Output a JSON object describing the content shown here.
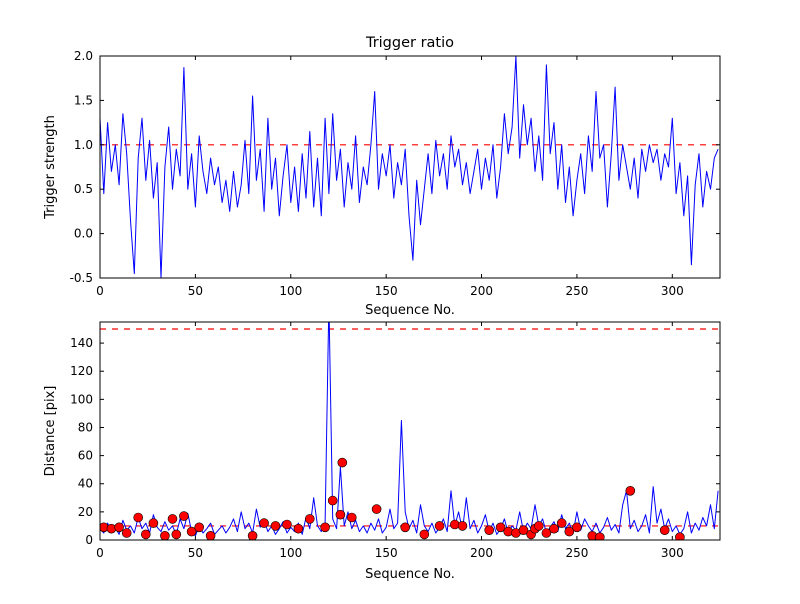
{
  "figure": {
    "background": "#ffffff"
  },
  "chart_data": [
    {
      "type": "line",
      "title": "Trigger ratio",
      "xlabel": "Sequence No.",
      "ylabel": "Trigger strength",
      "xlim": [
        0,
        325
      ],
      "ylim": [
        -0.5,
        2.0
      ],
      "xticks": [
        0,
        50,
        100,
        150,
        200,
        250,
        300
      ],
      "xtick_labels": [
        "0",
        "50",
        "100",
        "150",
        "200",
        "250",
        "300"
      ],
      "yticks": [
        2.0,
        1.5,
        1.0,
        0.5,
        0.0,
        -0.5
      ],
      "ytick_labels": [
        "2.0",
        "1.5",
        "1.0",
        "0.5",
        "0.0",
        "-0.5"
      ],
      "threshold_lines": [
        1.0
      ],
      "line_color": "#0000ff",
      "threshold_color": "#ff0000",
      "grid": false,
      "legend": null,
      "x_start": 0,
      "x_step": 2,
      "values": [
        1.3,
        0.45,
        1.25,
        0.7,
        1.0,
        0.55,
        1.35,
        0.9,
        0.15,
        -0.45,
        0.85,
        1.3,
        0.6,
        1.05,
        0.4,
        0.8,
        -0.5,
        0.75,
        1.2,
        0.5,
        0.95,
        0.65,
        1.87,
        0.5,
        0.9,
        0.3,
        1.1,
        0.7,
        0.45,
        0.85,
        0.55,
        0.75,
        0.35,
        0.6,
        0.25,
        0.7,
        0.3,
        0.55,
        1.05,
        0.45,
        1.55,
        0.6,
        0.95,
        0.25,
        1.3,
        0.5,
        0.85,
        0.2,
        0.65,
        1.0,
        0.35,
        0.75,
        0.25,
        0.9,
        0.4,
        1.15,
        0.3,
        0.85,
        0.2,
        1.3,
        0.45,
        1.35,
        0.6,
        0.95,
        0.3,
        0.8,
        0.5,
        1.1,
        0.35,
        0.75,
        0.55,
        1.0,
        1.6,
        0.5,
        0.9,
        0.65,
        1.0,
        0.4,
        0.8,
        0.55,
        0.95,
        0.2,
        -0.3,
        0.6,
        0.1,
        0.5,
        0.9,
        0.45,
        1.05,
        0.65,
        0.9,
        0.5,
        1.1,
        0.75,
        0.95,
        0.55,
        0.8,
        0.45,
        0.7,
        0.95,
        0.5,
        0.85,
        0.6,
        1.0,
        0.4,
        0.75,
        1.35,
        0.9,
        1.2,
        2.0,
        0.85,
        1.45,
        1.0,
        1.3,
        0.7,
        1.1,
        0.6,
        1.9,
        0.9,
        1.25,
        0.5,
        1.0,
        0.35,
        0.75,
        0.2,
        0.6,
        0.9,
        0.45,
        1.1,
        0.7,
        1.6,
        0.85,
        1.0,
        0.3,
        0.9,
        1.65,
        0.6,
        1.0,
        0.75,
        0.5,
        0.85,
        0.4,
        0.95,
        0.7,
        1.0,
        0.8,
        0.95,
        0.6,
        0.9,
        0.75,
        1.3,
        0.45,
        0.8,
        0.2,
        0.65,
        -0.35,
        0.55,
        0.9,
        0.3,
        0.7,
        0.5,
        0.85,
        0.95
      ]
    },
    {
      "type": "line+scatter",
      "title": "",
      "xlabel": "Sequence No.",
      "ylabel": "Distance [pix]",
      "xlim": [
        0,
        325
      ],
      "ylim": [
        0,
        155
      ],
      "xticks": [
        0,
        50,
        100,
        150,
        200,
        250,
        300
      ],
      "xtick_labels": [
        "0",
        "50",
        "100",
        "150",
        "200",
        "250",
        "300"
      ],
      "yticks": [
        0,
        20,
        40,
        60,
        80,
        100,
        120,
        140
      ],
      "ytick_labels": [
        "0",
        "20",
        "40",
        "60",
        "80",
        "100",
        "120",
        "140"
      ],
      "threshold_lines": [
        150,
        10
      ],
      "line_color": "#0000ff",
      "threshold_color": "#ff0000",
      "marker_color": "#ff0000",
      "grid": false,
      "legend": null,
      "x_start": 0,
      "x_step": 2,
      "values": [
        8,
        5,
        12,
        6,
        9,
        4,
        14,
        7,
        10,
        5,
        16,
        8,
        12,
        5,
        18,
        9,
        6,
        13,
        7,
        10,
        4,
        15,
        8,
        19,
        6,
        3,
        10,
        5,
        8,
        12,
        4,
        7,
        10,
        5,
        9,
        15,
        6,
        20,
        8,
        12,
        5,
        22,
        9,
        14,
        6,
        10,
        4,
        8,
        13,
        5,
        9,
        6,
        12,
        4,
        16,
        8,
        30,
        10,
        6,
        12,
        170,
        15,
        8,
        52,
        10,
        20,
        8,
        14,
        6,
        10,
        5,
        12,
        7,
        15,
        5,
        9,
        22,
        8,
        12,
        85,
        20,
        8,
        14,
        5,
        25,
        10,
        6,
        12,
        5,
        9,
        15,
        6,
        35,
        10,
        20,
        7,
        30,
        8,
        14,
        5,
        10,
        18,
        6,
        12,
        4,
        8,
        15,
        5,
        10,
        7,
        20,
        6,
        12,
        8,
        25,
        10,
        15,
        5,
        9,
        13,
        6,
        18,
        8,
        12,
        5,
        20,
        7,
        15,
        10,
        6,
        12,
        5,
        9,
        16,
        7,
        11,
        5,
        25,
        35,
        8,
        14,
        6,
        10,
        18,
        5,
        38,
        12,
        22,
        8,
        15,
        6,
        10,
        4,
        8,
        20,
        5,
        12,
        7,
        16,
        10,
        25,
        8,
        35
      ],
      "scatter_points": [
        [
          2,
          9
        ],
        [
          6,
          8
        ],
        [
          10,
          9
        ],
        [
          14,
          5
        ],
        [
          20,
          16
        ],
        [
          24,
          4
        ],
        [
          28,
          12
        ],
        [
          34,
          3
        ],
        [
          38,
          15
        ],
        [
          40,
          4
        ],
        [
          44,
          17
        ],
        [
          48,
          6
        ],
        [
          52,
          9
        ],
        [
          58,
          3
        ],
        [
          80,
          3
        ],
        [
          86,
          12
        ],
        [
          92,
          10
        ],
        [
          98,
          11
        ],
        [
          104,
          8
        ],
        [
          110,
          15
        ],
        [
          118,
          9
        ],
        [
          122,
          28
        ],
        [
          126,
          18
        ],
        [
          127,
          55
        ],
        [
          132,
          16
        ],
        [
          145,
          22
        ],
        [
          160,
          9
        ],
        [
          170,
          4
        ],
        [
          178,
          10
        ],
        [
          186,
          11
        ],
        [
          190,
          10
        ],
        [
          204,
          7
        ],
        [
          210,
          9
        ],
        [
          214,
          6
        ],
        [
          218,
          5
        ],
        [
          222,
          7
        ],
        [
          226,
          4
        ],
        [
          228,
          8
        ],
        [
          230,
          10
        ],
        [
          234,
          5
        ],
        [
          238,
          8
        ],
        [
          242,
          12
        ],
        [
          246,
          6
        ],
        [
          250,
          9
        ],
        [
          258,
          3
        ],
        [
          262,
          2
        ],
        [
          278,
          35
        ],
        [
          296,
          7
        ],
        [
          304,
          2
        ]
      ]
    }
  ]
}
